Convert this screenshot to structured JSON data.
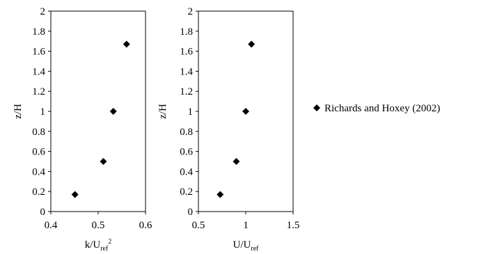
{
  "chart_data": [
    {
      "type": "scatter",
      "xlabel": {
        "base": "k/U",
        "sub": "ref",
        "sup": "2"
      },
      "ylabel": "z/H",
      "xlim": [
        0.4,
        0.6
      ],
      "ylim": [
        0,
        2
      ],
      "xticks": [
        0.4,
        0.5,
        0.6
      ],
      "xtick_labels": [
        "0.4",
        "0.5",
        "0.6"
      ],
      "yticks": [
        0,
        0.2,
        0.4,
        0.6,
        0.8,
        1,
        1.2,
        1.4,
        1.6,
        1.8,
        2
      ],
      "ytick_labels": [
        "0",
        "0.2",
        "0.4",
        "0.6",
        "0.8",
        "1",
        "1.2",
        "1.4",
        "1.6",
        "1.8",
        "2"
      ],
      "grid": false,
      "series": [
        {
          "name": "Richards and Hoxey (2002)",
          "marker": "diamond",
          "color": "#000000",
          "x": [
            0.451,
            0.511,
            0.532,
            0.56
          ],
          "y": [
            0.17,
            0.5,
            1.0,
            1.67
          ]
        }
      ]
    },
    {
      "type": "scatter",
      "xlabel": {
        "base": "U/U",
        "sub": "ref",
        "sup": ""
      },
      "ylabel": "z/H",
      "xlim": [
        0.5,
        1.5
      ],
      "ylim": [
        0,
        2
      ],
      "xticks": [
        0.5,
        1,
        1.5
      ],
      "xtick_labels": [
        "0.5",
        "1",
        "1.5"
      ],
      "yticks": [
        0,
        0.2,
        0.4,
        0.6,
        0.8,
        1,
        1.2,
        1.4,
        1.6,
        1.8,
        2
      ],
      "ytick_labels": [
        "0",
        "0.2",
        "0.4",
        "0.6",
        "0.8",
        "1",
        "1.2",
        "1.4",
        "1.6",
        "1.8",
        "2"
      ],
      "grid": false,
      "series": [
        {
          "name": "Richards and Hoxey (2002)",
          "marker": "diamond",
          "color": "#000000",
          "x": [
            0.73,
            0.9,
            1.0,
            1.06
          ],
          "y": [
            0.17,
            0.5,
            1.0,
            1.67
          ]
        }
      ]
    }
  ],
  "legend": {
    "placement": "right",
    "entries": [
      {
        "label": "Richards and Hoxey (2002)",
        "marker": "diamond",
        "color": "#000000"
      }
    ]
  }
}
